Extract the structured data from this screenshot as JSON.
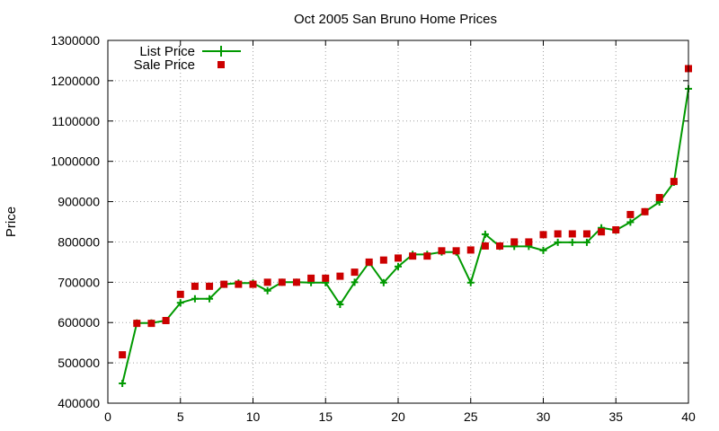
{
  "chart_data": {
    "type": "line",
    "title": "Oct 2005 San Bruno Home Prices",
    "xlabel": "",
    "ylabel": "Price",
    "xlim": [
      0,
      40
    ],
    "ylim": [
      400000,
      1300000
    ],
    "xticks": [
      0,
      5,
      10,
      15,
      20,
      25,
      30,
      35,
      40
    ],
    "yticks": [
      400000,
      500000,
      600000,
      700000,
      800000,
      900000,
      1000000,
      1100000,
      1200000,
      1300000
    ],
    "grid": true,
    "legend_position": "top-left",
    "x": [
      1,
      2,
      3,
      4,
      5,
      6,
      7,
      8,
      9,
      10,
      11,
      12,
      13,
      14,
      15,
      16,
      17,
      18,
      19,
      20,
      21,
      22,
      23,
      24,
      25,
      26,
      27,
      28,
      29,
      30,
      31,
      32,
      33,
      34,
      35,
      36,
      37,
      38,
      39,
      40
    ],
    "series": [
      {
        "name": "List Price",
        "style": "line-plus",
        "color": "#009900",
        "values": [
          449000,
          599000,
          599000,
          605000,
          649000,
          659000,
          659000,
          695000,
          698000,
          698000,
          679000,
          700000,
          700000,
          699000,
          699000,
          645000,
          700000,
          749000,
          699000,
          739000,
          769000,
          769000,
          775000,
          775000,
          699000,
          819000,
          789000,
          789000,
          789000,
          779000,
          799000,
          799000,
          799000,
          835000,
          829000,
          849000,
          875000,
          899000,
          948000,
          1180000
        ]
      },
      {
        "name": "Sale Price",
        "style": "square-points",
        "color": "#cc0000",
        "values": [
          520000,
          598000,
          598000,
          605000,
          670000,
          690000,
          690000,
          695000,
          695000,
          695000,
          700000,
          700000,
          700000,
          710000,
          710000,
          715000,
          725000,
          750000,
          755000,
          760000,
          765000,
          765000,
          778000,
          778000,
          780000,
          790000,
          790000,
          800000,
          800000,
          818000,
          820000,
          820000,
          820000,
          825000,
          830000,
          868000,
          875000,
          910000,
          950000,
          1230000
        ]
      }
    ]
  }
}
